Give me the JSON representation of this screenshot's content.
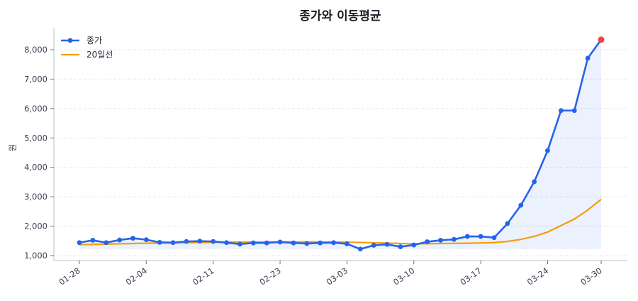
{
  "chart_data": {
    "type": "line",
    "title": "종가와 이동평균",
    "xlabel": "",
    "ylabel": "원",
    "ylim": [
      900,
      8700
    ],
    "yticks": [
      1000,
      2000,
      3000,
      4000,
      5000,
      6000,
      7000,
      8000
    ],
    "ytick_labels": [
      "1,000",
      "2,000",
      "3,000",
      "4,000",
      "5,000",
      "6,000",
      "7,000",
      "8,000"
    ],
    "xtick_labels": [
      "01-28",
      "02-04",
      "02-11",
      "02-23",
      "03-03",
      "03-10",
      "03-17",
      "03-24",
      "03-30"
    ],
    "xtick_indices": [
      0,
      5,
      10,
      15,
      20,
      25,
      30,
      35,
      39
    ],
    "grid": "horizontal dashed",
    "legend_position": "upper left",
    "fill_under_close": true,
    "last_point_highlight": "#ef4444",
    "series": [
      {
        "name": "종가",
        "color": "#2563eb",
        "marker": "circle",
        "values": [
          1440,
          1520,
          1440,
          1530,
          1590,
          1540,
          1450,
          1440,
          1480,
          1490,
          1480,
          1440,
          1390,
          1430,
          1430,
          1460,
          1430,
          1410,
          1430,
          1440,
          1400,
          1220,
          1350,
          1380,
          1300,
          1360,
          1470,
          1520,
          1550,
          1650,
          1650,
          1610,
          2090,
          2710,
          3510,
          4570,
          5930,
          5930,
          7710,
          8340
        ]
      },
      {
        "name": "20일선",
        "color": "#f59e0b",
        "marker": "none",
        "values": [
          1370,
          1380,
          1390,
          1400,
          1410,
          1420,
          1425,
          1430,
          1440,
          1445,
          1450,
          1455,
          1460,
          1460,
          1465,
          1465,
          1465,
          1465,
          1465,
          1460,
          1455,
          1445,
          1435,
          1425,
          1410,
          1400,
          1405,
          1410,
          1415,
          1420,
          1430,
          1440,
          1480,
          1550,
          1650,
          1800,
          2020,
          2240,
          2550,
          2910
        ]
      }
    ]
  }
}
